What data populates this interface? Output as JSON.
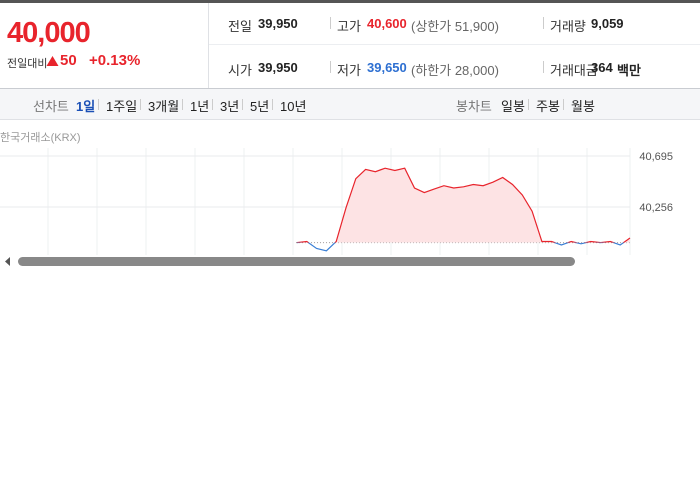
{
  "price": {
    "current": "40,000",
    "change_label": "전일대비",
    "change": "50",
    "change_rate": "+0.13%"
  },
  "stats": [
    [
      {
        "label": "전일",
        "value": "39,950"
      },
      {
        "label": "고가",
        "value": "40,600",
        "note": "(상한가 51,900)"
      },
      {
        "label": "거래량",
        "value": "9,059"
      }
    ],
    [
      {
        "label": "시가",
        "value": "39,950"
      },
      {
        "label": "저가",
        "value": "39,650",
        "note": "(하한가 28,000)"
      },
      {
        "label": "거래대금",
        "value": "364",
        "unit": "백만"
      }
    ]
  ],
  "tabs": {
    "line_label": "선차트",
    "line_ranges": [
      "1일",
      "1주일",
      "3개월",
      "1년",
      "3년",
      "5년",
      "10년"
    ],
    "active": 0,
    "candle_label": "봉차트",
    "candle_ranges": [
      "일봉",
      "주봉",
      "월봉"
    ]
  },
  "chart": {
    "type": "line",
    "source": "한국거래소(KRX)",
    "color": "#e8242c",
    "down_color": "#3a7fd5",
    "baseline": 39950,
    "values": [
      39950,
      39960,
      39900,
      39880,
      39960,
      40250,
      40500,
      40580,
      40560,
      40590,
      40570,
      40590,
      40420,
      40380,
      40410,
      40440,
      40420,
      40430,
      40450,
      40440,
      40470,
      40510,
      40450,
      40360,
      40220,
      39960,
      39960,
      39930,
      39960,
      39940,
      39960,
      39950,
      39960,
      39930,
      39990
    ],
    "ylim": [
      39818,
      40695
    ],
    "yticks": [
      {
        "value": 40695,
        "label": "40,695"
      },
      {
        "value": 40256,
        "label": "40,256"
      }
    ]
  }
}
